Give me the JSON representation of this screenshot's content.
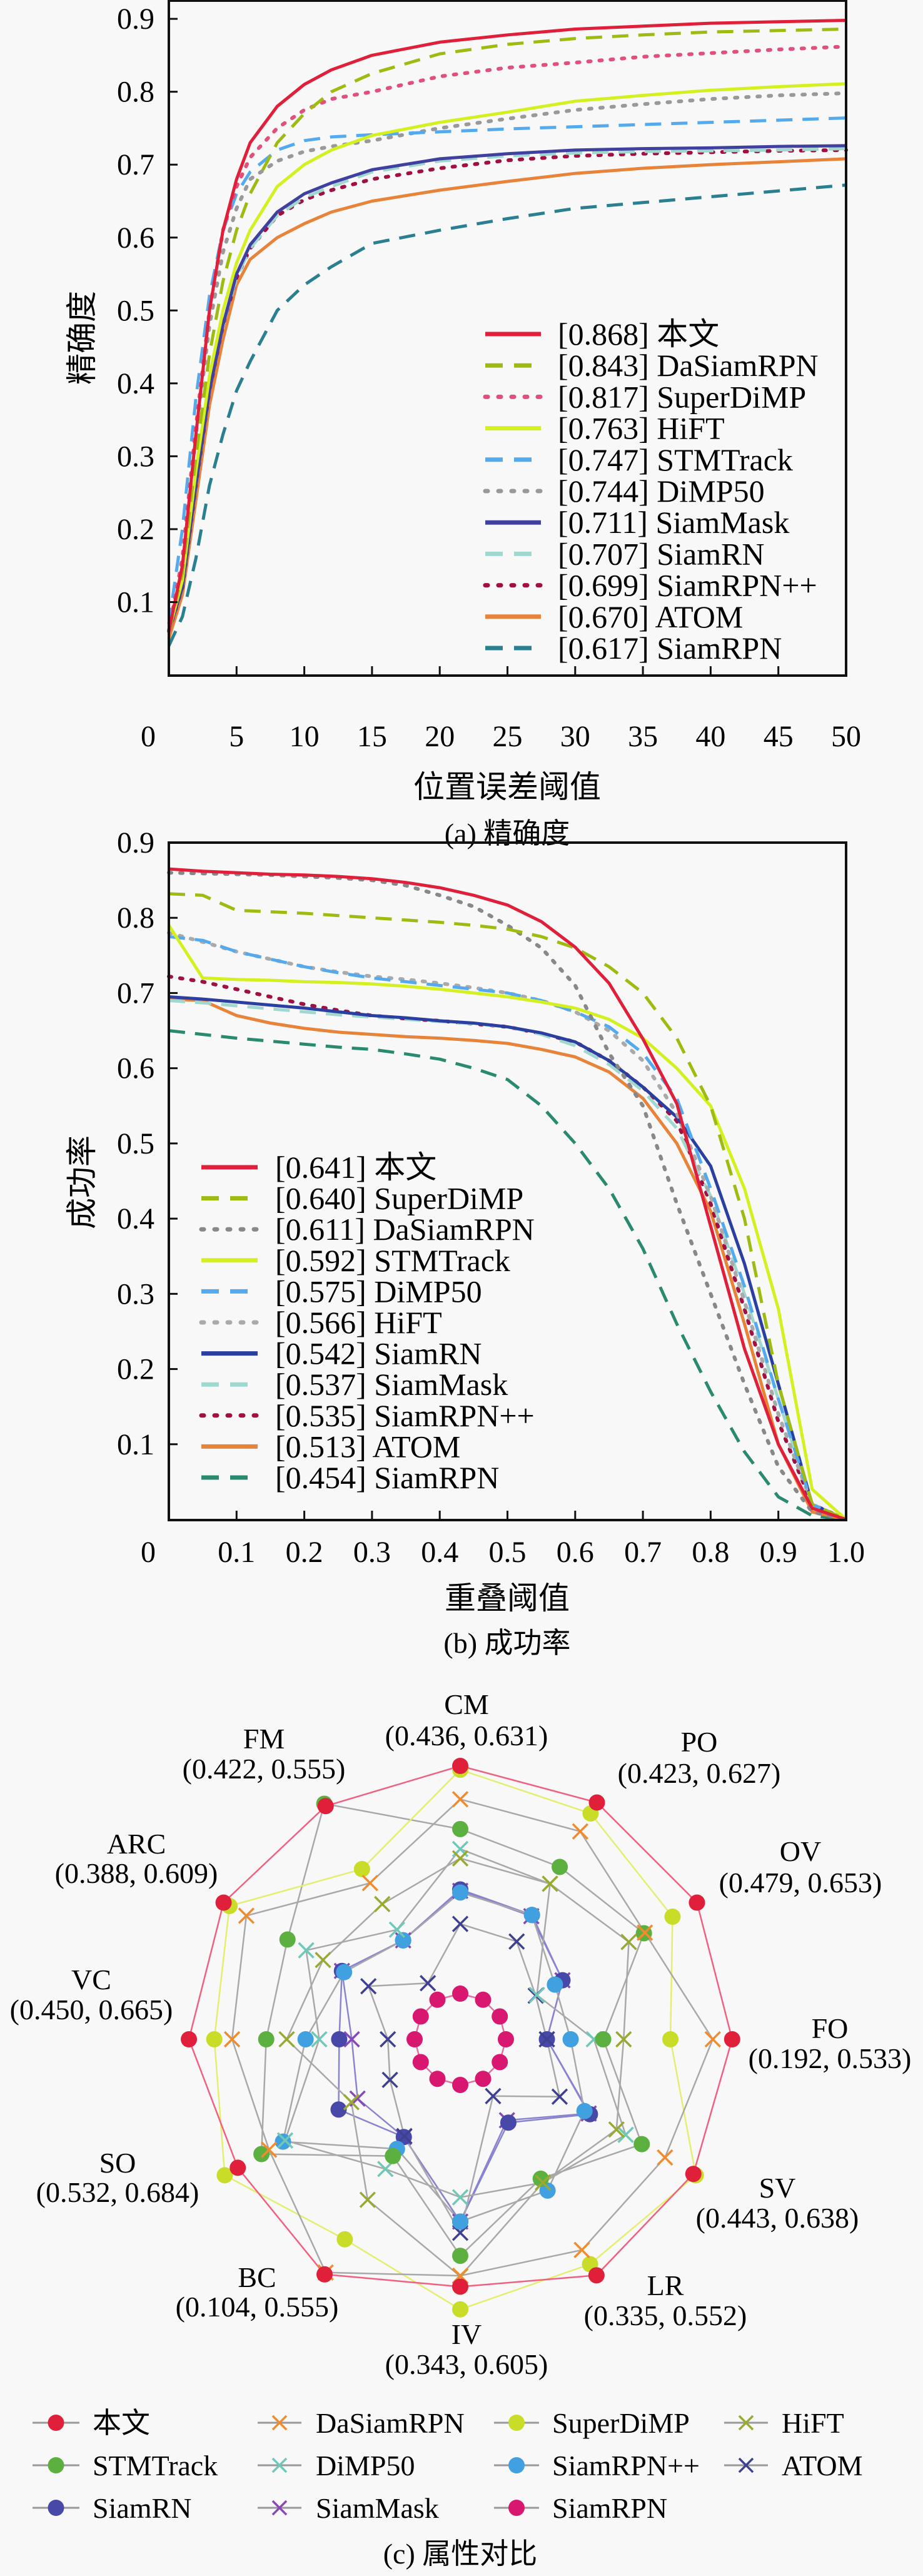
{
  "chart_data": [
    {
      "type": "line",
      "id": "precision",
      "caption": "(a) 精确度",
      "xlabel": "位置误差阈值",
      "ylabel": "精确度",
      "xlim": [
        0,
        50
      ],
      "ylim": [
        0,
        0.925
      ],
      "xticks": [
        "0",
        "5",
        "10",
        "15",
        "20",
        "25",
        "30",
        "35",
        "40",
        "45",
        "50"
      ],
      "xtick_values": [
        0,
        5,
        10,
        15,
        20,
        25,
        30,
        35,
        40,
        45,
        50
      ],
      "yticks": [
        "0.1",
        "0.2",
        "0.3",
        "0.4",
        "0.5",
        "0.6",
        "0.7",
        "0.8",
        "0.9"
      ],
      "ytick_values": [
        0.1,
        0.2,
        0.3,
        0.4,
        0.5,
        0.6,
        0.7,
        0.8,
        0.9
      ],
      "legend_position": "lower-right",
      "x": [
        0,
        1,
        2,
        3,
        4,
        5,
        6,
        8,
        10,
        12,
        15,
        20,
        25,
        30,
        35,
        40,
        45,
        50
      ],
      "series": [
        {
          "name": "本文",
          "score": "[0.868]",
          "style": "solid",
          "color": "#e0203a",
          "values": [
            0.06,
            0.15,
            0.33,
            0.5,
            0.61,
            0.68,
            0.73,
            0.78,
            0.81,
            0.83,
            0.85,
            0.868,
            0.878,
            0.886,
            0.89,
            0.894,
            0.896,
            0.898
          ]
        },
        {
          "name": "DaSiamRPN",
          "score": "[0.843]",
          "style": "dashed",
          "color": "#9dbb10",
          "values": [
            0.06,
            0.14,
            0.3,
            0.44,
            0.54,
            0.61,
            0.66,
            0.73,
            0.77,
            0.8,
            0.825,
            0.852,
            0.865,
            0.873,
            0.878,
            0.882,
            0.884,
            0.886
          ]
        },
        {
          "name": "SuperDiMP",
          "score": "[0.817]",
          "style": "dotted",
          "color": "#e0507a",
          "values": [
            0.06,
            0.16,
            0.34,
            0.5,
            0.61,
            0.67,
            0.71,
            0.75,
            0.775,
            0.79,
            0.8,
            0.821,
            0.833,
            0.84,
            0.848,
            0.853,
            0.858,
            0.862
          ]
        },
        {
          "name": "HiFT",
          "score": "[0.763]",
          "style": "solid",
          "color": "#d4f020",
          "values": [
            0.06,
            0.13,
            0.28,
            0.41,
            0.5,
            0.565,
            0.61,
            0.67,
            0.7,
            0.72,
            0.74,
            0.758,
            0.772,
            0.787,
            0.795,
            0.802,
            0.807,
            0.811
          ]
        },
        {
          "name": "STMTrack",
          "score": "[0.747]",
          "style": "dashed",
          "color": "#55aaee",
          "values": [
            0.07,
            0.2,
            0.38,
            0.52,
            0.61,
            0.66,
            0.69,
            0.72,
            0.733,
            0.738,
            0.741,
            0.745,
            0.749,
            0.752,
            0.755,
            0.758,
            0.761,
            0.764
          ]
        },
        {
          "name": "DiMP50",
          "score": "[0.744]",
          "style": "dotted",
          "color": "#999999",
          "values": [
            0.06,
            0.15,
            0.33,
            0.48,
            0.58,
            0.64,
            0.68,
            0.705,
            0.718,
            0.725,
            0.733,
            0.75,
            0.763,
            0.775,
            0.783,
            0.79,
            0.795,
            0.798
          ]
        },
        {
          "name": "SiamMask",
          "score": "[0.711]",
          "style": "solid",
          "color": "#4040a0",
          "values": [
            0.06,
            0.12,
            0.26,
            0.39,
            0.48,
            0.55,
            0.59,
            0.635,
            0.66,
            0.675,
            0.693,
            0.708,
            0.715,
            0.72,
            0.722,
            0.723,
            0.725,
            0.726
          ]
        },
        {
          "name": "SiamRN",
          "score": "[0.707]",
          "style": "dashed",
          "color": "#a0d8d0",
          "values": [
            0.06,
            0.12,
            0.26,
            0.39,
            0.48,
            0.545,
            0.585,
            0.63,
            0.655,
            0.67,
            0.69,
            0.705,
            0.712,
            0.716,
            0.718,
            0.719,
            0.72,
            0.722
          ]
        },
        {
          "name": "SiamRPN++",
          "score": "[0.699]",
          "style": "dotted",
          "color": "#a01040",
          "values": [
            0.06,
            0.12,
            0.26,
            0.39,
            0.48,
            0.545,
            0.585,
            0.63,
            0.652,
            0.665,
            0.68,
            0.695,
            0.706,
            0.712,
            0.715,
            0.717,
            0.719,
            0.72
          ]
        },
        {
          "name": "ATOM",
          "score": "[0.670]",
          "style": "solid",
          "color": "#e8833a",
          "values": [
            0.05,
            0.11,
            0.24,
            0.37,
            0.46,
            0.535,
            0.57,
            0.6,
            0.619,
            0.635,
            0.65,
            0.665,
            0.677,
            0.688,
            0.695,
            0.7,
            0.704,
            0.708
          ]
        },
        {
          "name": "SiamRPN",
          "score": "[0.617]",
          "style": "dashed",
          "color": "#2a7f90",
          "values": [
            0.04,
            0.08,
            0.16,
            0.26,
            0.33,
            0.39,
            0.43,
            0.5,
            0.535,
            0.56,
            0.592,
            0.61,
            0.626,
            0.64,
            0.648,
            0.656,
            0.664,
            0.672
          ]
        }
      ]
    },
    {
      "type": "line",
      "id": "success",
      "caption": "(b) 成功率",
      "xlabel": "重叠阈值",
      "ylabel": "成功率",
      "xlim": [
        0,
        1.0
      ],
      "ylim": [
        0,
        0.9
      ],
      "xticks": [
        "0",
        "0.1",
        "0.2",
        "0.3",
        "0.4",
        "0.5",
        "0.6",
        "0.7",
        "0.8",
        "0.9",
        "1.0"
      ],
      "xtick_values": [
        0,
        0.1,
        0.2,
        0.3,
        0.4,
        0.5,
        0.6,
        0.7,
        0.8,
        0.9,
        1.0
      ],
      "yticks": [
        "0.1",
        "0.2",
        "0.3",
        "0.4",
        "0.5",
        "0.6",
        "0.7",
        "0.8",
        "0.9"
      ],
      "ytick_values": [
        0.1,
        0.2,
        0.3,
        0.4,
        0.5,
        0.6,
        0.7,
        0.8,
        0.9
      ],
      "legend_position": "lower-left",
      "x": [
        0,
        0.05,
        0.1,
        0.15,
        0.2,
        0.25,
        0.3,
        0.35,
        0.4,
        0.45,
        0.5,
        0.55,
        0.6,
        0.65,
        0.7,
        0.75,
        0.8,
        0.85,
        0.9,
        0.95,
        1.0
      ],
      "series": [
        {
          "name": "本文",
          "score": "[0.641]",
          "style": "solid",
          "color": "#e0203a",
          "values": [
            0.865,
            0.862,
            0.86,
            0.858,
            0.857,
            0.855,
            0.852,
            0.847,
            0.84,
            0.83,
            0.817,
            0.795,
            0.761,
            0.713,
            0.639,
            0.553,
            0.39,
            0.227,
            0.1,
            0.015,
            0.0
          ]
        },
        {
          "name": "SuperDiMP",
          "score": "[0.640]",
          "style": "dashed",
          "color": "#9dbb10",
          "values": [
            0.832,
            0.83,
            0.81,
            0.808,
            0.806,
            0.803,
            0.8,
            0.797,
            0.794,
            0.79,
            0.785,
            0.775,
            0.76,
            0.735,
            0.7,
            0.64,
            0.55,
            0.4,
            0.18,
            0.02,
            0.0
          ]
        },
        {
          "name": "DaSiamRPN",
          "score": "[0.611]",
          "style": "dotted",
          "color": "#888888",
          "values": [
            0.86,
            0.859,
            0.858,
            0.857,
            0.855,
            0.853,
            0.85,
            0.843,
            0.83,
            0.815,
            0.79,
            0.76,
            0.71,
            0.62,
            0.55,
            0.42,
            0.3,
            0.18,
            0.07,
            0.01,
            0.0
          ]
        },
        {
          "name": "STMTrack",
          "score": "[0.592]",
          "style": "solid",
          "color": "#d4f020",
          "values": [
            0.79,
            0.72,
            0.718,
            0.717,
            0.715,
            0.714,
            0.712,
            0.709,
            0.705,
            0.7,
            0.695,
            0.688,
            0.68,
            0.665,
            0.64,
            0.6,
            0.55,
            0.44,
            0.28,
            0.04,
            0.0
          ]
        },
        {
          "name": "DiMP50",
          "score": "[0.575]",
          "style": "dashed",
          "color": "#55aaee",
          "values": [
            0.775,
            0.77,
            0.755,
            0.745,
            0.735,
            0.727,
            0.72,
            0.715,
            0.71,
            0.705,
            0.7,
            0.69,
            0.675,
            0.655,
            0.62,
            0.56,
            0.44,
            0.31,
            0.16,
            0.02,
            0.0
          ]
        },
        {
          "name": "HiFT",
          "score": "[0.566]",
          "style": "dotted",
          "color": "#aaaaaa",
          "values": [
            0.78,
            0.768,
            0.755,
            0.745,
            0.735,
            0.728,
            0.722,
            0.718,
            0.713,
            0.707,
            0.7,
            0.69,
            0.675,
            0.65,
            0.61,
            0.54,
            0.43,
            0.29,
            0.14,
            0.02,
            0.0
          ]
        },
        {
          "name": "SiamRN",
          "score": "[0.542]",
          "style": "solid",
          "color": "#2a3fa0",
          "values": [
            0.695,
            0.692,
            0.688,
            0.684,
            0.68,
            0.675,
            0.67,
            0.667,
            0.663,
            0.66,
            0.655,
            0.647,
            0.635,
            0.61,
            0.575,
            0.535,
            0.47,
            0.34,
            0.18,
            0.02,
            0.0
          ]
        },
        {
          "name": "SiamMask",
          "score": "[0.537]",
          "style": "dashed",
          "color": "#a0d8d0",
          "values": [
            0.69,
            0.687,
            0.683,
            0.679,
            0.675,
            0.671,
            0.668,
            0.665,
            0.662,
            0.659,
            0.655,
            0.645,
            0.63,
            0.605,
            0.57,
            0.52,
            0.43,
            0.3,
            0.16,
            0.02,
            0.0
          ]
        },
        {
          "name": "SiamRPN++",
          "score": "[0.535]",
          "style": "dotted",
          "color": "#a01040",
          "values": [
            0.722,
            0.715,
            0.705,
            0.695,
            0.685,
            0.677,
            0.67,
            0.666,
            0.663,
            0.659,
            0.655,
            0.646,
            0.635,
            0.61,
            0.575,
            0.53,
            0.42,
            0.28,
            0.13,
            0.02,
            0.0
          ]
        },
        {
          "name": "ATOM",
          "score": "[0.513]",
          "style": "solid",
          "color": "#e8833a",
          "values": [
            0.692,
            0.69,
            0.67,
            0.66,
            0.653,
            0.648,
            0.645,
            0.642,
            0.64,
            0.637,
            0.633,
            0.625,
            0.615,
            0.595,
            0.56,
            0.5,
            0.41,
            0.26,
            0.1,
            0.01,
            0.0
          ]
        },
        {
          "name": "SiamRPN",
          "score": "[0.454]",
          "style": "dashed",
          "color": "#2a8a70",
          "values": [
            0.65,
            0.645,
            0.64,
            0.636,
            0.632,
            0.628,
            0.625,
            0.619,
            0.612,
            0.6,
            0.585,
            0.55,
            0.5,
            0.44,
            0.36,
            0.26,
            0.17,
            0.09,
            0.03,
            0.005,
            0.0
          ]
        }
      ]
    },
    {
      "type": "radar",
      "id": "attributes",
      "caption": "(c) 属性对比",
      "value_note": "normalized radial position per axis (0 = center, 1 = outer ring)",
      "axes": [
        {
          "name": "CM",
          "range": "(0.436, 0.631)"
        },
        {
          "name": "PO",
          "range": "(0.423, 0.627)"
        },
        {
          "name": "OV",
          "range": "(0.479, 0.653)"
        },
        {
          "name": "FO",
          "range": "(0.192, 0.533)"
        },
        {
          "name": "SV",
          "range": "(0.443, 0.638)"
        },
        {
          "name": "LR",
          "range": "(0.335, 0.552)"
        },
        {
          "name": "IV",
          "range": "(0.343, 0.605)"
        },
        {
          "name": "BC",
          "range": "(0.104, 0.555)"
        },
        {
          "name": "SO",
          "range": "(0.532, 0.684)"
        },
        {
          "name": "VC",
          "range": "(0.450, 0.665)"
        },
        {
          "name": "ARC",
          "range": "(0.388, 0.609)"
        },
        {
          "name": "FM",
          "range": "(0.422, 0.555)"
        }
      ],
      "series": [
        {
          "name": "本文",
          "marker": "dot",
          "color": "#e0203a",
          "values": [
            1.0,
            1.0,
            1.0,
            0.995,
            0.985,
            0.997,
            0.905,
            0.993,
            0.94,
            0.993,
            1.0,
            0.985
          ]
        },
        {
          "name": "DaSiamRPN",
          "marker": "x",
          "color": "#f08c30",
          "values": [
            0.878,
            0.878,
            0.78,
            0.924,
            0.865,
            0.89,
            0.865,
            0.985,
            0.808,
            0.835,
            0.904,
            0.66
          ]
        },
        {
          "name": "SuperDiMP",
          "marker": "dot",
          "color": "#c8dc28",
          "values": [
            0.986,
            0.954,
            0.897,
            0.769,
            0.995,
            0.95,
            0.988,
            0.845,
            0.995,
            0.9,
            0.975,
            0.719
          ]
        },
        {
          "name": "HiFT",
          "marker": "x",
          "color": "#9aaa30",
          "values": [
            0.662,
            0.657,
            0.712,
            0.598,
            0.66,
            0.605,
            0.867,
            0.678,
            0.46,
            0.635,
            0.58,
            0.571
          ]
        },
        {
          "name": "STMTrack",
          "marker": "dot",
          "color": "#5cb040",
          "values": [
            0.769,
            0.728,
            0.776,
            0.523,
            0.767,
            0.589,
            0.792,
            0.493,
            0.84,
            0.71,
            0.73,
            0.995
          ]
        },
        {
          "name": "DiMP50",
          "marker": "x",
          "color": "#70c8b8",
          "values": [
            0.696,
            0.657,
            0.324,
            0.489,
            0.699,
            0.605,
            0.578,
            0.548,
            0.74,
            0.516,
            0.651,
            0.463
          ]
        },
        {
          "name": "SiamRPN++",
          "marker": "dot",
          "color": "#40a0e0",
          "values": [
            0.537,
            0.525,
            0.4,
            0.404,
            0.525,
            0.639,
            0.667,
            0.463,
            0.749,
            0.566,
            0.491,
            0.418
          ]
        },
        {
          "name": "ATOM",
          "marker": "x",
          "color": "#404090",
          "values": [
            0.422,
            0.413,
            0.319,
            0.317,
            0.42,
            0.24,
            0.708,
            0.409,
            0.297,
            0.265,
            0.388,
            0.237
          ]
        },
        {
          "name": "SiamRN",
          "marker": "dot",
          "color": "#4848a8",
          "values": [
            0.548,
            0.525,
            0.432,
            0.317,
            0.548,
            0.352,
            0.667,
            0.413,
            0.514,
            0.443,
            0.5,
            0.418
          ]
        },
        {
          "name": "SiamMask",
          "marker": "x",
          "color": "#8848b8",
          "values": [
            0.543,
            0.52,
            0.432,
            0.317,
            0.543,
            0.342,
            0.667,
            0.413,
            0.434,
            0.397,
            0.5,
            0.418
          ]
        },
        {
          "name": "SiamRPN",
          "marker": "dot",
          "color": "#d81870",
          "values": [
            0.167,
            0.167,
            0.167,
            0.167,
            0.167,
            0.167,
            0.167,
            0.167,
            0.167,
            0.167,
            0.167,
            0.167
          ]
        }
      ]
    }
  ]
}
